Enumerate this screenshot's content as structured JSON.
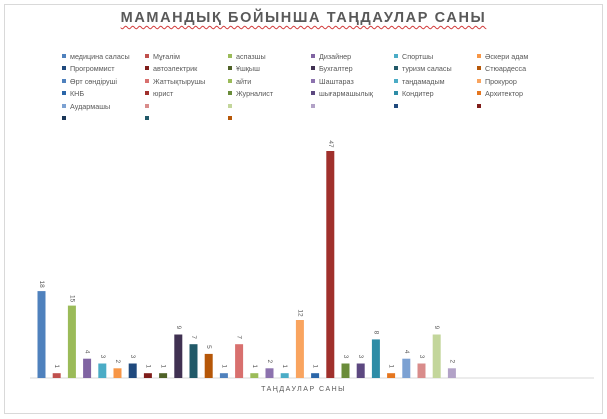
{
  "chart_data": {
    "type": "bar",
    "title": "МАМАНДЫҚ БОЙЫНША ТАҢДАУЛАР САНЫ",
    "xlabel": "ТАҢДАУЛАР САНЫ",
    "ylabel": "",
    "ylim": [
      0,
      47
    ],
    "grid": false,
    "legend": "top",
    "series": [
      {
        "name": "медицина саласы",
        "value": 18,
        "color": "#4f81bd"
      },
      {
        "name": "Мұғалім",
        "value": 1,
        "color": "#c0504d"
      },
      {
        "name": "аспазшы",
        "value": 15,
        "color": "#9bbb59"
      },
      {
        "name": "Дизайнер",
        "value": 4,
        "color": "#8064a2"
      },
      {
        "name": "Спортшы",
        "value": 3,
        "color": "#4bacc6"
      },
      {
        "name": "Әскери адам",
        "value": 2,
        "color": "#f79646"
      },
      {
        "name": "Прогроммист",
        "value": 3,
        "color": "#1f497d"
      },
      {
        "name": "автоэлектрик",
        "value": 1,
        "color": "#7f1d1a"
      },
      {
        "name": "Ұшқыш",
        "value": 1,
        "color": "#4f6228"
      },
      {
        "name": "Бухгалтер",
        "value": 9,
        "color": "#403152"
      },
      {
        "name": "туризм саласы",
        "value": 7,
        "color": "#215968"
      },
      {
        "name": "Стюардесса",
        "value": 5,
        "color": "#b65708"
      },
      {
        "name": "Өрт сөндіруші",
        "value": 1,
        "color": "#4f81bd"
      },
      {
        "name": "Жаттықтырушы",
        "value": 7,
        "color": "#d8706e"
      },
      {
        "name": "айти",
        "value": 1,
        "color": "#9bbb59"
      },
      {
        "name": "Шаштараз",
        "value": 2,
        "color": "#8c72ae"
      },
      {
        "name": "таңдамадым",
        "value": 1,
        "color": "#4bacc6"
      },
      {
        "name": "Прокурор",
        "value": 12,
        "color": "#f9a45f"
      },
      {
        "name": "КНБ",
        "value": 1,
        "color": "#2b66a8"
      },
      {
        "name": "юрист",
        "value": 47,
        "color": "#a0302c"
      },
      {
        "name": "Журналист",
        "value": 3,
        "color": "#6a8c3a"
      },
      {
        "name": "шығармашылық",
        "value": 3,
        "color": "#5c4880"
      },
      {
        "name": "Кондитер",
        "value": 8,
        "color": "#2e8ca6"
      },
      {
        "name": "Архитектор",
        "value": 1,
        "color": "#e5761f"
      },
      {
        "name": "Аудармашы",
        "value": 4,
        "color": "#7ca1d2"
      },
      {
        "name": "",
        "value": 3,
        "color": "#d98c8b"
      },
      {
        "name": "",
        "value": 9,
        "color": "#c3d69b"
      },
      {
        "name": "",
        "value": 2,
        "color": "#b2a2c7"
      }
    ],
    "extra_legend_colors": [
      "#1f497d",
      "#7f1d1a",
      "#1a3657",
      "#215968",
      "#b65708"
    ]
  }
}
